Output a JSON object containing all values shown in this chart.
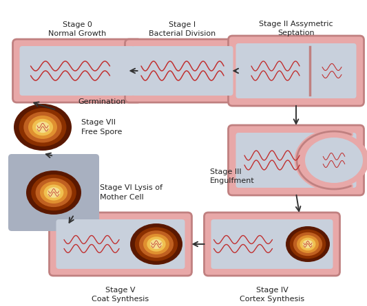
{
  "bg_color": "#ffffff",
  "cell_border": "#c08080",
  "cell_fill": "#e8a8a8",
  "cell_interior": "#c8d0dc",
  "dna_color1": "#c03030",
  "dna_color2": "#d06060",
  "spore_dark1": "#5a1800",
  "spore_dark2": "#8b3000",
  "spore_mid": "#c06020",
  "spore_light1": "#e09030",
  "spore_light2": "#f0c050",
  "spore_core": "#f5e090",
  "text_color": "#222222",
  "arrow_color": "#333333",
  "lysis_bg": "#a8b0c0",
  "stage_labels": [
    "Stage 0\nNormal Growth",
    "Stage I\nBacterial Division",
    "Stage II Assymetric\nSeptation",
    "Stage III\nEngulfment",
    "Stage IV\nCortex Synthesis",
    "Stage V\nCoat Synthesis",
    "Stage VI Lysis of\nMother Cell",
    "Stage VII\nFree Spore"
  ]
}
